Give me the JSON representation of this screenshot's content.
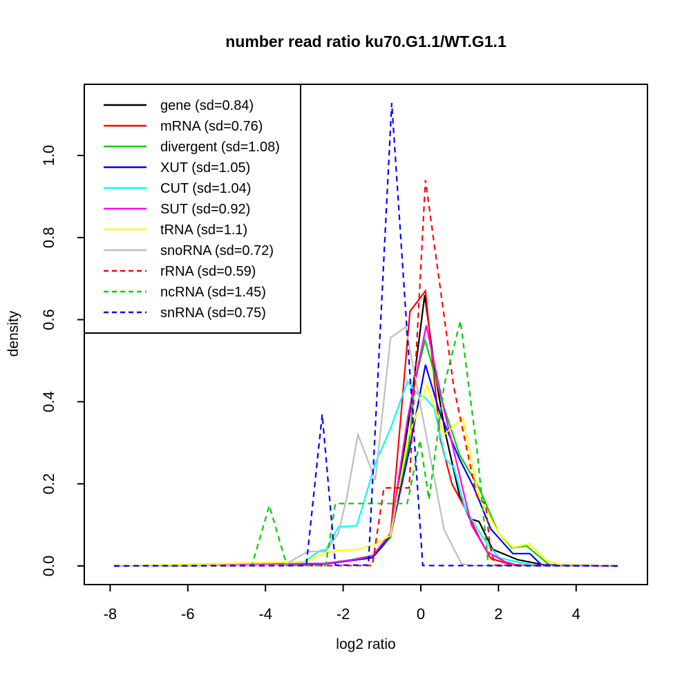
{
  "chart_data": {
    "type": "line",
    "title": "number read ratio ku70.G1.1/WT.G1.1",
    "xlabel": "log2 ratio",
    "ylabel": "density",
    "xlim": [
      -8.66,
      5.84
    ],
    "ylim": [
      -0.045,
      1.18
    ],
    "grid": false,
    "legend_position": "top-left",
    "x_ticks": [
      -8,
      -6,
      -4,
      -2,
      0,
      2,
      4
    ],
    "x_tick_labels": [
      "-8",
      "-6",
      "-4",
      "-2",
      "0",
      "2",
      "4"
    ],
    "y_ticks": [
      0.0,
      0.2,
      0.4,
      0.6,
      0.8,
      1.0
    ],
    "y_tick_labels": [
      "0.0",
      "0.2",
      "0.4",
      "0.6",
      "0.8",
      "1.0"
    ],
    "series": [
      {
        "name": "gene",
        "label": "gene (sd=0.84)",
        "sd": 0.84,
        "color": "#000000",
        "dashed": false,
        "points": [
          [
            -7.9,
            0
          ],
          [
            -3.2,
            0.002
          ],
          [
            -2.4,
            0.006
          ],
          [
            -1.8,
            0.013
          ],
          [
            -1.25,
            0.02
          ],
          [
            -0.78,
            0.07
          ],
          [
            -0.3,
            0.36
          ],
          [
            0.1,
            0.66
          ],
          [
            0.4,
            0.45
          ],
          [
            0.64,
            0.32
          ],
          [
            1.0,
            0.17
          ],
          [
            1.26,
            0.115
          ],
          [
            1.5,
            0.108
          ],
          [
            1.85,
            0.04
          ],
          [
            2.5,
            0.015
          ],
          [
            3.2,
            0.002
          ],
          [
            5.07,
            0
          ]
        ]
      },
      {
        "name": "mRNA",
        "label": "mRNA (sd=0.76)",
        "sd": 0.76,
        "color": "#FF0000",
        "dashed": false,
        "points": [
          [
            -7.9,
            0
          ],
          [
            -3.2,
            0.002
          ],
          [
            -2.4,
            0.006
          ],
          [
            -1.8,
            0.013
          ],
          [
            -1.25,
            0.022
          ],
          [
            -0.78,
            0.074
          ],
          [
            -0.28,
            0.62
          ],
          [
            0.12,
            0.67
          ],
          [
            0.5,
            0.31
          ],
          [
            0.8,
            0.2
          ],
          [
            1.17,
            0.135
          ],
          [
            1.5,
            0.07
          ],
          [
            1.8,
            0.018
          ],
          [
            2.3,
            0.004
          ],
          [
            2.7,
            0.001
          ],
          [
            5.07,
            0
          ]
        ]
      },
      {
        "name": "divergent",
        "label": "divergent (sd=1.08)",
        "sd": 1.08,
        "color": "#00CD00",
        "dashed": false,
        "points": [
          [
            -7.9,
            0
          ],
          [
            -2.5,
            0.005
          ],
          [
            -1.8,
            0.015
          ],
          [
            -1.25,
            0.025
          ],
          [
            -0.78,
            0.07
          ],
          [
            -0.3,
            0.3
          ],
          [
            -0.15,
            0.45
          ],
          [
            0.11,
            0.55
          ],
          [
            0.55,
            0.4
          ],
          [
            1.0,
            0.27
          ],
          [
            1.5,
            0.19
          ],
          [
            2.0,
            0.08
          ],
          [
            2.35,
            0.044
          ],
          [
            2.72,
            0.049
          ],
          [
            3.3,
            0.003
          ],
          [
            5.07,
            0
          ]
        ]
      },
      {
        "name": "XUT",
        "label": "XUT (sd=1.05)",
        "sd": 1.05,
        "color": "#0000FF",
        "dashed": false,
        "points": [
          [
            -7.9,
            0
          ],
          [
            -2.5,
            0.005
          ],
          [
            -1.8,
            0.013
          ],
          [
            -1.25,
            0.022
          ],
          [
            -0.78,
            0.075
          ],
          [
            -0.3,
            0.28
          ],
          [
            0.12,
            0.49
          ],
          [
            0.5,
            0.37
          ],
          [
            1.0,
            0.26
          ],
          [
            1.37,
            0.19
          ],
          [
            1.8,
            0.09
          ],
          [
            2.37,
            0.03
          ],
          [
            2.81,
            0.03
          ],
          [
            3.1,
            0.003
          ],
          [
            5.07,
            0
          ]
        ]
      },
      {
        "name": "CUT",
        "label": "CUT (sd=1.04)",
        "sd": 1.04,
        "color": "#00FFFF",
        "dashed": false,
        "points": [
          [
            -7.9,
            0
          ],
          [
            -3.1,
            0.004
          ],
          [
            -2.6,
            0.037
          ],
          [
            -2.44,
            0.04
          ],
          [
            -2.12,
            0.095
          ],
          [
            -1.65,
            0.098
          ],
          [
            -1.55,
            0.13
          ],
          [
            -1.17,
            0.25
          ],
          [
            -0.78,
            0.335
          ],
          [
            -0.34,
            0.45
          ],
          [
            -0.1,
            0.42
          ],
          [
            0.11,
            0.41
          ],
          [
            0.34,
            0.385
          ],
          [
            0.64,
            0.26
          ],
          [
            0.85,
            0.24
          ],
          [
            1.14,
            0.14
          ],
          [
            1.62,
            0.066
          ],
          [
            2.0,
            0.02
          ],
          [
            2.6,
            0.007
          ],
          [
            3.0,
            0.001
          ],
          [
            5.07,
            0
          ]
        ]
      },
      {
        "name": "SUT",
        "label": "SUT (sd=0.92)",
        "sd": 0.92,
        "color": "#FF00FF",
        "dashed": false,
        "points": [
          [
            -7.9,
            0
          ],
          [
            -2.5,
            0.006
          ],
          [
            -1.8,
            0.014
          ],
          [
            -1.25,
            0.024
          ],
          [
            -0.78,
            0.08
          ],
          [
            -0.34,
            0.36
          ],
          [
            0.14,
            0.586
          ],
          [
            0.6,
            0.38
          ],
          [
            1.0,
            0.22
          ],
          [
            1.3,
            0.1
          ],
          [
            1.7,
            0.035
          ],
          [
            2.17,
            0.01
          ],
          [
            2.5,
            0.001
          ],
          [
            5.07,
            0
          ]
        ]
      },
      {
        "name": "tRNA",
        "label": "tRNA (sd=1.1)",
        "sd": 1.1,
        "color": "#FFFF00",
        "dashed": false,
        "points": [
          [
            -7.9,
            0
          ],
          [
            -3.0,
            0.01
          ],
          [
            -2.44,
            0.032
          ],
          [
            -2.17,
            0.037
          ],
          [
            -1.64,
            0.04
          ],
          [
            -1.25,
            0.05
          ],
          [
            -0.78,
            0.074
          ],
          [
            -0.34,
            0.31
          ],
          [
            0.16,
            0.44
          ],
          [
            0.6,
            0.32
          ],
          [
            1.08,
            0.36
          ],
          [
            1.5,
            0.17
          ],
          [
            2.0,
            0.08
          ],
          [
            2.37,
            0.045
          ],
          [
            2.81,
            0.054
          ],
          [
            3.2,
            0.015
          ],
          [
            3.6,
            0.002
          ],
          [
            5.07,
            0
          ]
        ]
      },
      {
        "name": "snoRNA",
        "label": "snoRNA (sd=0.72)",
        "sd": 0.72,
        "color": "#BEBEBE",
        "dashed": false,
        "points": [
          [
            -7.9,
            0
          ],
          [
            -3.5,
            0.002
          ],
          [
            -3.2,
            0.02
          ],
          [
            -2.9,
            0.035
          ],
          [
            -2.45,
            0.035
          ],
          [
            -2.12,
            0.08
          ],
          [
            -1.9,
            0.17
          ],
          [
            -1.62,
            0.32
          ],
          [
            -1.17,
            0.21
          ],
          [
            -0.78,
            0.556
          ],
          [
            -0.39,
            0.582
          ],
          [
            0.6,
            0.088
          ],
          [
            1.05,
            0.005
          ],
          [
            1.3,
            0.001
          ],
          [
            5.07,
            0
          ]
        ]
      },
      {
        "name": "rRNA",
        "label": "rRNA (sd=0.59)",
        "sd": 0.59,
        "color": "#FF0000",
        "dashed": true,
        "points": [
          [
            -7.9,
            0
          ],
          [
            -1.25,
            0.001
          ],
          [
            -0.95,
            0.19
          ],
          [
            -0.3,
            0.19
          ],
          [
            0.12,
            0.94
          ],
          [
            0.41,
            0.74
          ],
          [
            0.85,
            0.435
          ],
          [
            1.44,
            0.17
          ],
          [
            1.67,
            0.15
          ],
          [
            1.78,
            0.05
          ],
          [
            1.9,
            0.002
          ],
          [
            5.07,
            0
          ]
        ]
      },
      {
        "name": "ncRNA",
        "label": "ncRNA (sd=1.45)",
        "sd": 1.45,
        "color": "#00CD00",
        "dashed": true,
        "points": [
          [
            -7.9,
            0
          ],
          [
            -4.35,
            0.001
          ],
          [
            -3.9,
            0.147
          ],
          [
            -3.45,
            0.001
          ],
          [
            -2.45,
            0.001
          ],
          [
            -2.2,
            0.152
          ],
          [
            -0.35,
            0.152
          ],
          [
            -0.02,
            0.306
          ],
          [
            0.21,
            0.162
          ],
          [
            0.6,
            0.44
          ],
          [
            1.02,
            0.597
          ],
          [
            1.45,
            0.28
          ],
          [
            1.74,
            0.001
          ],
          [
            5.07,
            0
          ]
        ]
      },
      {
        "name": "snRNA",
        "label": "snRNA (sd=0.75)",
        "sd": 0.75,
        "color": "#0000FF",
        "dashed": true,
        "points": [
          [
            -7.9,
            0
          ],
          [
            -2.95,
            0.001
          ],
          [
            -2.54,
            0.369
          ],
          [
            -2.2,
            0.002
          ],
          [
            -1.35,
            0.002
          ],
          [
            -0.75,
            1.128
          ],
          [
            0.05,
            0.001
          ],
          [
            5.07,
            0
          ]
        ]
      }
    ]
  }
}
